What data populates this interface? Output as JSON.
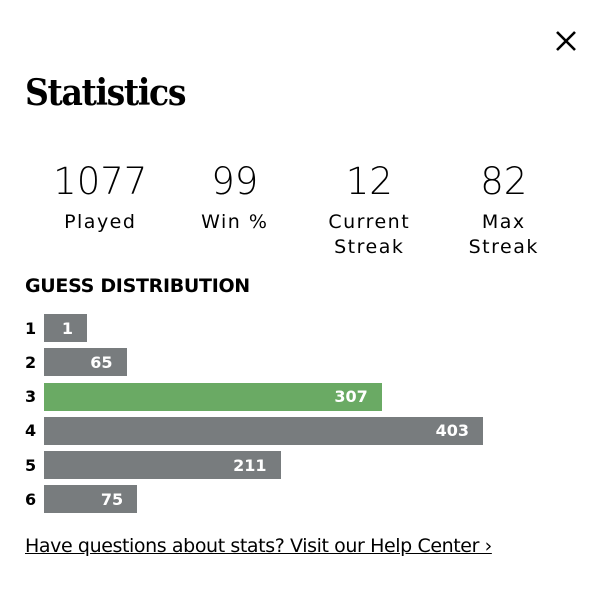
{
  "header": {
    "title": "Statistics"
  },
  "stats": [
    {
      "value": 1077,
      "label": "Played"
    },
    {
      "value": 99,
      "label": "Win %"
    },
    {
      "value": 12,
      "label": "Current Streak"
    },
    {
      "value": 82,
      "label": "Max Streak"
    }
  ],
  "chart_data": {
    "type": "bar",
    "title": "GUESS DISTRIBUTION",
    "categories": [
      "1",
      "2",
      "3",
      "4",
      "5",
      "6"
    ],
    "values": [
      1,
      65,
      307,
      403,
      211,
      75
    ],
    "colors": [
      "#787c7e",
      "#787c7e",
      "#6aaa64",
      "#787c7e",
      "#787c7e",
      "#787c7e"
    ]
  },
  "link": "Have questions about stats? Visit our Help Center ›"
}
